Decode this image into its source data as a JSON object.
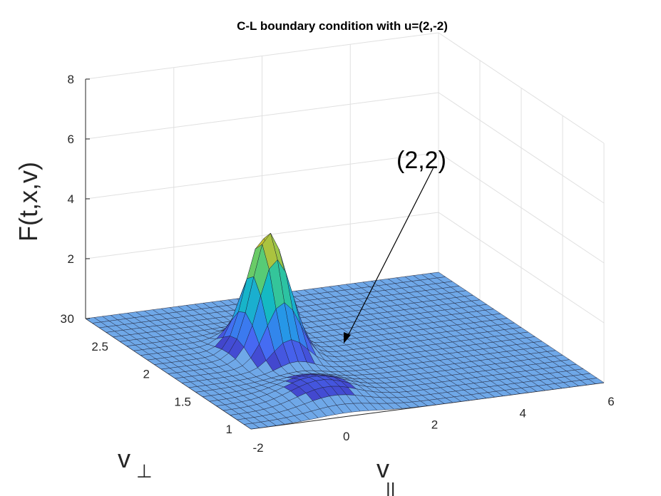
{
  "chart_data": {
    "type": "surface",
    "title": "C-L boundary condition with u=(2,-2)",
    "xlabel": "v",
    "xlabel_sub": "||",
    "ylabel": "v",
    "ylabel_sub": "⊥",
    "zlabel": "F(t,x,v)",
    "xlim": [
      -2,
      6
    ],
    "ylim": [
      1,
      3
    ],
    "zlim": [
      0,
      8
    ],
    "x_ticks": [
      "-2",
      "0",
      "2",
      "4",
      "6"
    ],
    "y_ticks": [
      "1",
      "1.5",
      "2",
      "2.5",
      "3"
    ],
    "z_ticks": [
      "0",
      "2",
      "4",
      "6",
      "8"
    ],
    "grid": true,
    "colormap": "parula",
    "surface_color": "#6fa8e8",
    "peak": {
      "x": 0.45,
      "y": 2.1,
      "z": 4.1
    },
    "bump": {
      "x": 0.2,
      "y": 1.35,
      "z": 0.6
    },
    "annotation": {
      "text": "(2,2)"
    }
  }
}
